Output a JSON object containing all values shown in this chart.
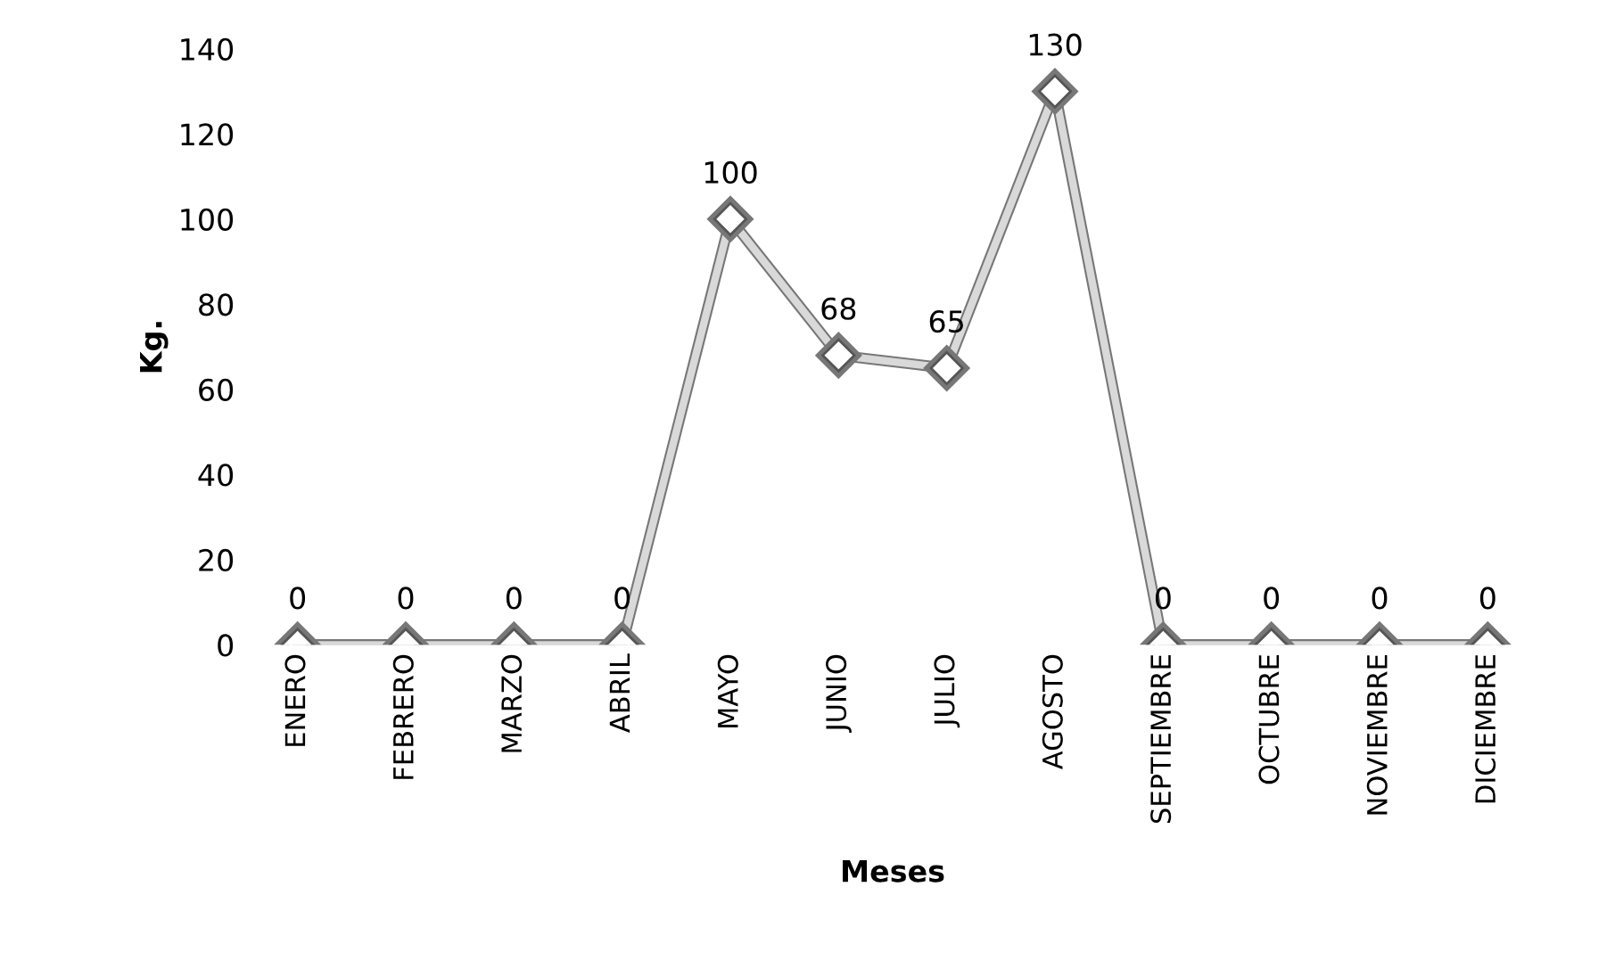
{
  "chart_data": {
    "type": "line",
    "xlabel": "Meses",
    "ylabel": "Kg.",
    "categories": [
      "ENERO",
      "FEBRERO",
      "MARZO",
      "ABRIL",
      "MAYO",
      "JUNIO",
      "JULIO",
      "AGOSTO",
      "SEPTIEMBRE",
      "OCTUBRE",
      "NOVIEMBRE",
      "DICIEMBRE"
    ],
    "series": [
      {
        "color": "#d9d9d9",
        "values": [
          0,
          0,
          0,
          0,
          100,
          68,
          65,
          130,
          0,
          0,
          0,
          0
        ]
      }
    ],
    "ylim": [
      0,
      140
    ],
    "yticks": [
      0,
      20,
      40,
      60,
      80,
      100,
      120,
      140
    ],
    "marker": "diamond",
    "line_style": "solid",
    "grid": false,
    "legend": false,
    "data_labels": true
  }
}
